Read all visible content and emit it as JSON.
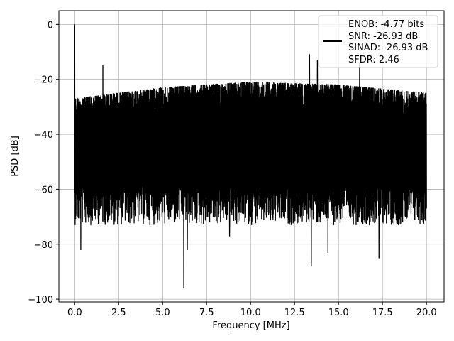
{
  "chart_data": {
    "type": "line",
    "title": "",
    "xlabel": "Frequency [MHz]",
    "ylabel": "PSD [dB]",
    "xlim": [
      -0.9,
      21.0
    ],
    "ylim": [
      -101,
      5
    ],
    "xticks": [
      0.0,
      2.5,
      5.0,
      7.5,
      10.0,
      12.5,
      15.0,
      17.5,
      20.0
    ],
    "xtick_labels": [
      "0.0",
      "2.5",
      "5.0",
      "7.5",
      "10.0",
      "12.5",
      "15.0",
      "17.5",
      "20.0"
    ],
    "yticks": [
      0,
      -20,
      -40,
      -60,
      -80,
      -100
    ],
    "ytick_labels": [
      "0",
      "−20",
      "−40",
      "−60",
      "−80",
      "−100"
    ],
    "grid": true,
    "legend_position": "top-right",
    "legend": [
      "ENOB: -4.77 bits",
      "SNR: -26.93 dB",
      "SINAD: -26.93 dB",
      "SFDR: 2.46"
    ],
    "series": [
      {
        "color": "#000000",
        "x_range": [
          0.0,
          20.0
        ],
        "peaks": [
          {
            "x": 0.0,
            "y": 0.0
          },
          {
            "x": 1.6,
            "y": -15
          },
          {
            "x": 13.35,
            "y": -11
          },
          {
            "x": 13.8,
            "y": -13
          },
          {
            "x": 16.2,
            "y": -14
          }
        ],
        "upper_envelope": [
          {
            "x": 0.0,
            "y": -27
          },
          {
            "x": 5.0,
            "y": -23
          },
          {
            "x": 10.0,
            "y": -21
          },
          {
            "x": 15.0,
            "y": -22
          },
          {
            "x": 20.0,
            "y": -25
          }
        ],
        "typical_floor": -63,
        "deep_notches": [
          {
            "x": 0.35,
            "y": -82
          },
          {
            "x": 6.2,
            "y": -96
          },
          {
            "x": 6.4,
            "y": -82
          },
          {
            "x": 8.8,
            "y": -77
          },
          {
            "x": 13.45,
            "y": -88
          },
          {
            "x": 14.4,
            "y": -83
          },
          {
            "x": 17.3,
            "y": -85
          }
        ]
      }
    ]
  }
}
